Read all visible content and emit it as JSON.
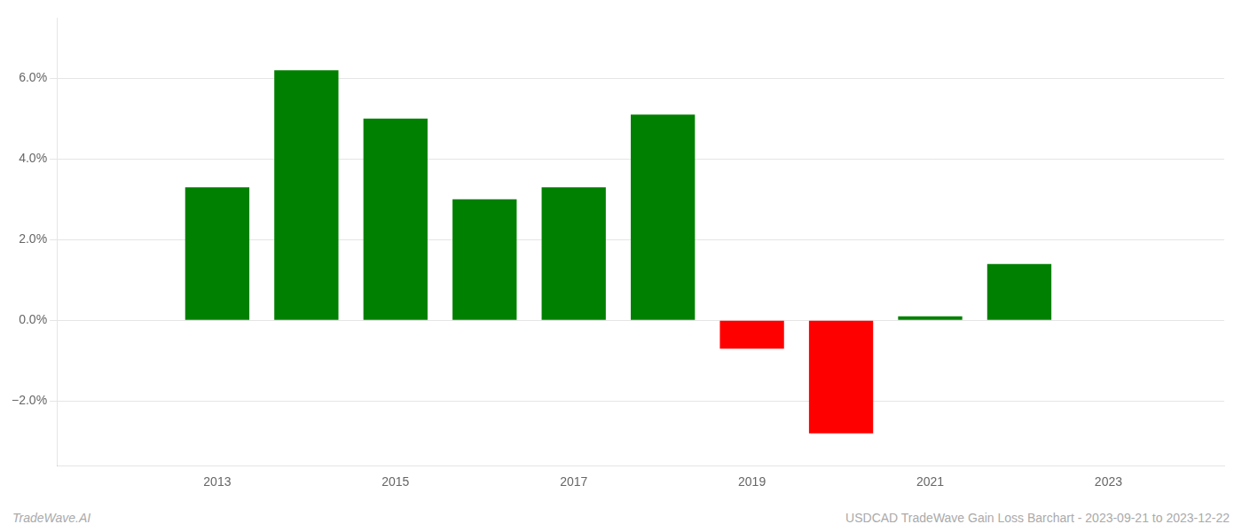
{
  "chart_data": {
    "type": "bar",
    "x": [
      2013,
      2014,
      2015,
      2016,
      2017,
      2018,
      2019,
      2020,
      2021,
      2022
    ],
    "values": [
      0.033,
      0.062,
      0.05,
      0.03,
      0.033,
      0.051,
      -0.007,
      -0.028,
      0.001,
      0.014
    ],
    "colors": [
      "#008000",
      "#008000",
      "#008000",
      "#008000",
      "#008000",
      "#008000",
      "#ff0000",
      "#ff0000",
      "#008000",
      "#008000"
    ],
    "xlim": [
      2011.2,
      2024.3
    ],
    "xticks": [
      2013,
      2015,
      2017,
      2019,
      2021,
      2023
    ],
    "ylim": [
      -0.036,
      0.075
    ],
    "yticks": [
      {
        "value": -0.02,
        "label": "−2.0%"
      },
      {
        "value": 0.0,
        "label": "0.0%"
      },
      {
        "value": 0.02,
        "label": "2.0%"
      },
      {
        "value": 0.04,
        "label": "4.0%"
      },
      {
        "value": 0.06,
        "label": "6.0%"
      }
    ],
    "grid": true,
    "annotations": [
      "TradeWave.AI",
      "USDCAD TradeWave Gain Loss Barchart - 2023-09-21 to 2023-12-22"
    ]
  }
}
